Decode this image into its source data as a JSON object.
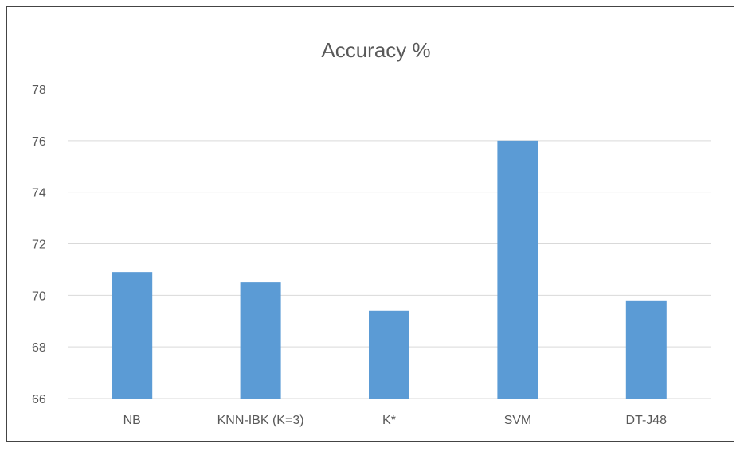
{
  "chart_data": {
    "type": "bar",
    "title": "Accuracy %",
    "categories": [
      "NB",
      "KNN-IBK (K=3)",
      "K*",
      "SVM",
      "DT-J48"
    ],
    "values": [
      70.9,
      70.5,
      69.4,
      76.0,
      69.8
    ],
    "yticks": [
      66,
      68,
      70,
      72,
      74,
      76,
      78
    ],
    "ylim": [
      66,
      78
    ],
    "xlabel": "",
    "ylabel": "",
    "grid": true,
    "legend": "none",
    "bar_color": "#5b9bd5"
  }
}
